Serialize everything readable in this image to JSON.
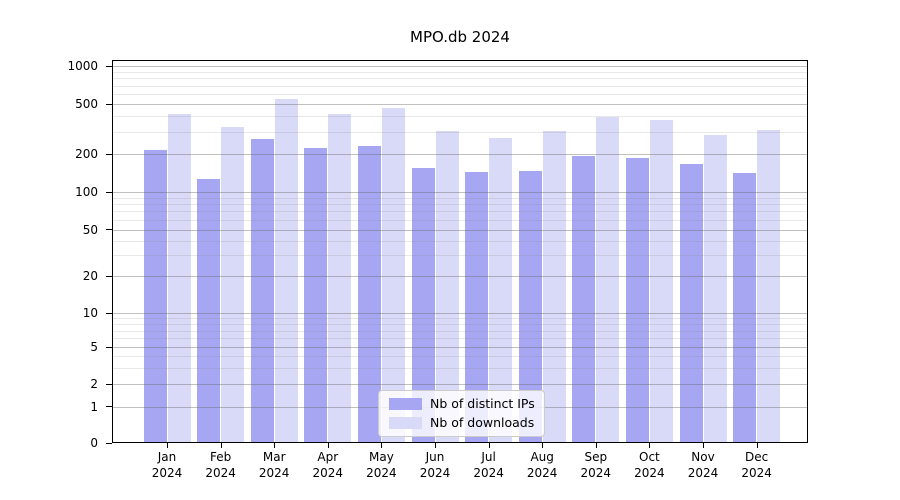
{
  "title": "MPO.db 2024",
  "chart_data": {
    "type": "bar",
    "title": "MPO.db 2024",
    "yscale": "symlog",
    "grid": true,
    "legend_position": "lower center",
    "ylim": [
      0,
      1100
    ],
    "y_ticks": [
      0,
      1,
      2,
      5,
      10,
      20,
      50,
      100,
      200,
      500,
      1000
    ],
    "categories": [
      "Jan 2024",
      "Feb 2024",
      "Mar 2024",
      "Apr 2024",
      "May 2024",
      "Jun 2024",
      "Jul 2024",
      "Aug 2024",
      "Sep 2024",
      "Oct 2024",
      "Nov 2024",
      "Dec 2024"
    ],
    "series": [
      {
        "name": "Nb of distinct IPs",
        "color": "#a6a6f2",
        "values": [
          215,
          127,
          265,
          225,
          233,
          155,
          146,
          148,
          193,
          188,
          167,
          141
        ]
      },
      {
        "name": "Nb of downloads",
        "color": "#d9d9f8",
        "values": [
          415,
          330,
          550,
          415,
          465,
          307,
          268,
          305,
          397,
          373,
          285,
          315
        ]
      }
    ]
  }
}
